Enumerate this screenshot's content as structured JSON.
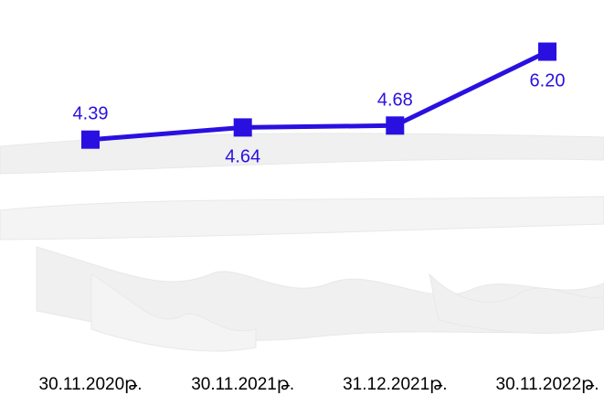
{
  "chart_data": {
    "type": "line",
    "categories": [
      "30.11.2020թ.",
      "30.11.2021թ.",
      "31.12.2021թ.",
      "30.11.2022թ."
    ],
    "series": [
      {
        "values": [
          4.39,
          4.64,
          4.68,
          6.2
        ],
        "labels": [
          "4.39",
          "4.64",
          "4.68",
          "6.20"
        ],
        "color": "#2a10e0"
      }
    ],
    "title": "",
    "xlabel": "",
    "ylabel": "",
    "ylim": [
      3.5,
      7
    ],
    "grid": false,
    "legend": "none",
    "label_position": [
      "above",
      "below",
      "above",
      "below"
    ],
    "marker": "square",
    "label_color": "#2a10e0",
    "axis_label_color": "#000000",
    "background_texture": "faint grey brush-stroke pattern"
  }
}
